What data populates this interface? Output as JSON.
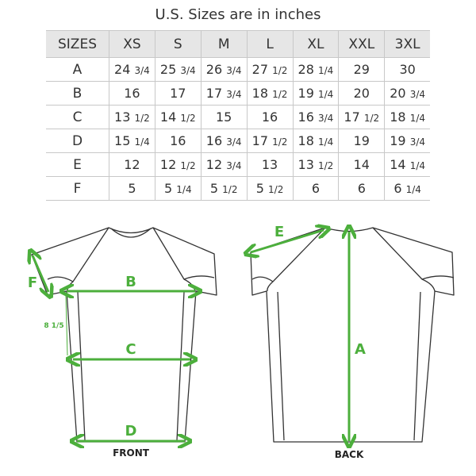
{
  "title": "U.S. Sizes are in inches",
  "table": {
    "headers": [
      "SIZES",
      "XS",
      "S",
      "M",
      "L",
      "XL",
      "XXL",
      "3XL"
    ],
    "rows": [
      [
        "A",
        "24 3/4",
        "25 3/4",
        "26 3/4",
        "27 1/2",
        "28 1/4",
        "29",
        "30"
      ],
      [
        "B",
        "16",
        "17",
        "17 3/4",
        "18 1/2",
        "19 1/4",
        "20",
        "20 3/4"
      ],
      [
        "C",
        "13 1/2",
        "14 1/2",
        "15",
        "16",
        "16 3/4",
        "17 1/2",
        "18 1/4"
      ],
      [
        "D",
        "15 1/4",
        "16",
        "16 3/4",
        "17 1/2",
        "18 1/4",
        "19",
        "19 3/4"
      ],
      [
        "E",
        "12",
        "12 1/2",
        "12 3/4",
        "13",
        "13 1/2",
        "14",
        "14 1/4"
      ],
      [
        "F",
        "5",
        "5 1/4",
        "5 1/2",
        "5 1/2",
        "6",
        "6",
        "6 1/4"
      ]
    ]
  },
  "diagram": {
    "front_label": "FRONT",
    "back_label": "BACK",
    "labels": {
      "A": "A",
      "B": "B",
      "C": "C",
      "D": "D",
      "E": "E",
      "F": "F"
    },
    "armhole_to_c": "8 1/5",
    "accent_color": "#4caf3c"
  }
}
